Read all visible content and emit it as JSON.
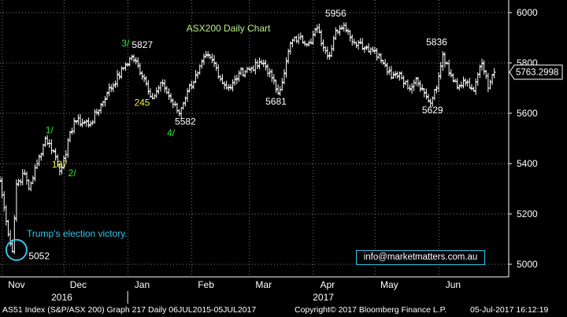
{
  "chart_data": {
    "type": "ohlc",
    "title": "ASX200 Daily Chart",
    "ylim": [
      4950,
      6050
    ],
    "yticks": [
      5000,
      5200,
      5400,
      5600,
      5800,
      6000
    ],
    "months": [
      {
        "label": "Nov",
        "day": 8
      },
      {
        "label": "Dec",
        "day": 38
      },
      {
        "label": "Jan",
        "day": 69
      },
      {
        "label": "Feb",
        "day": 100
      },
      {
        "label": "Mar",
        "day": 128
      },
      {
        "label": "Apr",
        "day": 159
      },
      {
        "label": "May",
        "day": 189
      },
      {
        "label": "Jun",
        "day": 220
      }
    ],
    "years": [
      {
        "label": "2016",
        "day": 30
      },
      {
        "label": "2017",
        "day": 157
      }
    ],
    "year_divider_day": 62,
    "x_domain": [
      0,
      247
    ],
    "last_price": "5763.2998",
    "last_price_value": 5763.3,
    "anchors": [
      {
        "day": 0,
        "v": 5330
      },
      {
        "day": 3,
        "v": 5170
      },
      {
        "day": 6,
        "v": 5052
      },
      {
        "day": 8,
        "v": 5320
      },
      {
        "day": 12,
        "v": 5360
      },
      {
        "day": 14,
        "v": 5300
      },
      {
        "day": 18,
        "v": 5400
      },
      {
        "day": 22,
        "v": 5500
      },
      {
        "day": 26,
        "v": 5450
      },
      {
        "day": 29,
        "v": 5370
      },
      {
        "day": 31,
        "v": 5420
      },
      {
        "day": 36,
        "v": 5570
      },
      {
        "day": 44,
        "v": 5560
      },
      {
        "day": 52,
        "v": 5680
      },
      {
        "day": 60,
        "v": 5780
      },
      {
        "day": 64,
        "v": 5827
      },
      {
        "day": 70,
        "v": 5740
      },
      {
        "day": 74,
        "v": 5660
      },
      {
        "day": 79,
        "v": 5720
      },
      {
        "day": 83,
        "v": 5650
      },
      {
        "day": 87,
        "v": 5600
      },
      {
        "day": 91,
        "v": 5690
      },
      {
        "day": 96,
        "v": 5760
      },
      {
        "day": 100,
        "v": 5830
      },
      {
        "day": 104,
        "v": 5800
      },
      {
        "day": 108,
        "v": 5720
      },
      {
        "day": 112,
        "v": 5700
      },
      {
        "day": 116,
        "v": 5760
      },
      {
        "day": 122,
        "v": 5780
      },
      {
        "day": 128,
        "v": 5800
      },
      {
        "day": 132,
        "v": 5740
      },
      {
        "day": 135,
        "v": 5681
      },
      {
        "day": 138,
        "v": 5760
      },
      {
        "day": 141,
        "v": 5880
      },
      {
        "day": 145,
        "v": 5900
      },
      {
        "day": 150,
        "v": 5880
      },
      {
        "day": 154,
        "v": 5940
      },
      {
        "day": 157,
        "v": 5860
      },
      {
        "day": 160,
        "v": 5830
      },
      {
        "day": 163,
        "v": 5930
      },
      {
        "day": 167,
        "v": 5950
      },
      {
        "day": 170,
        "v": 5900
      },
      {
        "day": 174,
        "v": 5880
      },
      {
        "day": 178,
        "v": 5860
      },
      {
        "day": 182,
        "v": 5850
      },
      {
        "day": 186,
        "v": 5800
      },
      {
        "day": 190,
        "v": 5740
      },
      {
        "day": 194,
        "v": 5760
      },
      {
        "day": 198,
        "v": 5700
      },
      {
        "day": 202,
        "v": 5740
      },
      {
        "day": 206,
        "v": 5680
      },
      {
        "day": 209,
        "v": 5640
      },
      {
        "day": 212,
        "v": 5700
      },
      {
        "day": 215,
        "v": 5836
      },
      {
        "day": 218,
        "v": 5760
      },
      {
        "day": 222,
        "v": 5700
      },
      {
        "day": 226,
        "v": 5720
      },
      {
        "day": 230,
        "v": 5690
      },
      {
        "day": 234,
        "v": 5800
      },
      {
        "day": 237,
        "v": 5700
      },
      {
        "day": 240,
        "v": 5763
      }
    ],
    "annotations": [
      {
        "text": "5827",
        "day": 64,
        "v": 5860,
        "color": "#ffffff",
        "anchor": "start"
      },
      {
        "text": "3/",
        "day": 59,
        "v": 5865,
        "color": "#22ee22",
        "anchor": "start"
      },
      {
        "text": "245",
        "day": 69,
        "v": 5630,
        "color": "#f2e84a",
        "anchor": "middle"
      },
      {
        "text": "4/",
        "day": 83,
        "v": 5510,
        "color": "#22ee22",
        "anchor": "middle"
      },
      {
        "text": "5582",
        "day": 90,
        "v": 5555,
        "color": "#ffffff",
        "anchor": "middle"
      },
      {
        "text": "5681",
        "day": 134,
        "v": 5635,
        "color": "#ffffff",
        "anchor": "middle"
      },
      {
        "text": "5956",
        "day": 163,
        "v": 5985,
        "color": "#ffffff",
        "anchor": "middle"
      },
      {
        "text": "5836",
        "day": 212,
        "v": 5870,
        "color": "#ffffff",
        "anchor": "middle"
      },
      {
        "text": "5629",
        "day": 210,
        "v": 5600,
        "color": "#ffffff",
        "anchor": "middle"
      },
      {
        "text": "1/",
        "day": 24,
        "v": 5520,
        "color": "#22ee22",
        "anchor": "middle"
      },
      {
        "text": "137",
        "day": 29,
        "v": 5385,
        "color": "#f2e84a",
        "anchor": "middle"
      },
      {
        "text": "2/",
        "day": 35,
        "v": 5350,
        "color": "#22ee22",
        "anchor": "middle"
      },
      {
        "text": "5052",
        "day": 19,
        "v": 5020,
        "color": "#ffffff",
        "anchor": "middle"
      },
      {
        "text": "Trump's election victory.",
        "day": 13,
        "v": 5110,
        "color": "#36c4e6",
        "anchor": "start"
      }
    ],
    "circle": {
      "day": 8,
      "v": 5057
    },
    "grid": true
  },
  "email": "info@marketmatters.com.au",
  "footer": {
    "left": "AS51 Index (S&P/ASX 200) Graph 217  Daily 06JUL2015-05JUL2017",
    "middle": "Copyright© 2017 Bloomberg Finance L.P.",
    "right": "05-Jul-2017 16:12:19"
  },
  "colors": {
    "background": "#000000",
    "price": "#ffffff",
    "grid": "#7a7a7a",
    "title": "#b8f08a",
    "circle": "#36c4e6"
  }
}
